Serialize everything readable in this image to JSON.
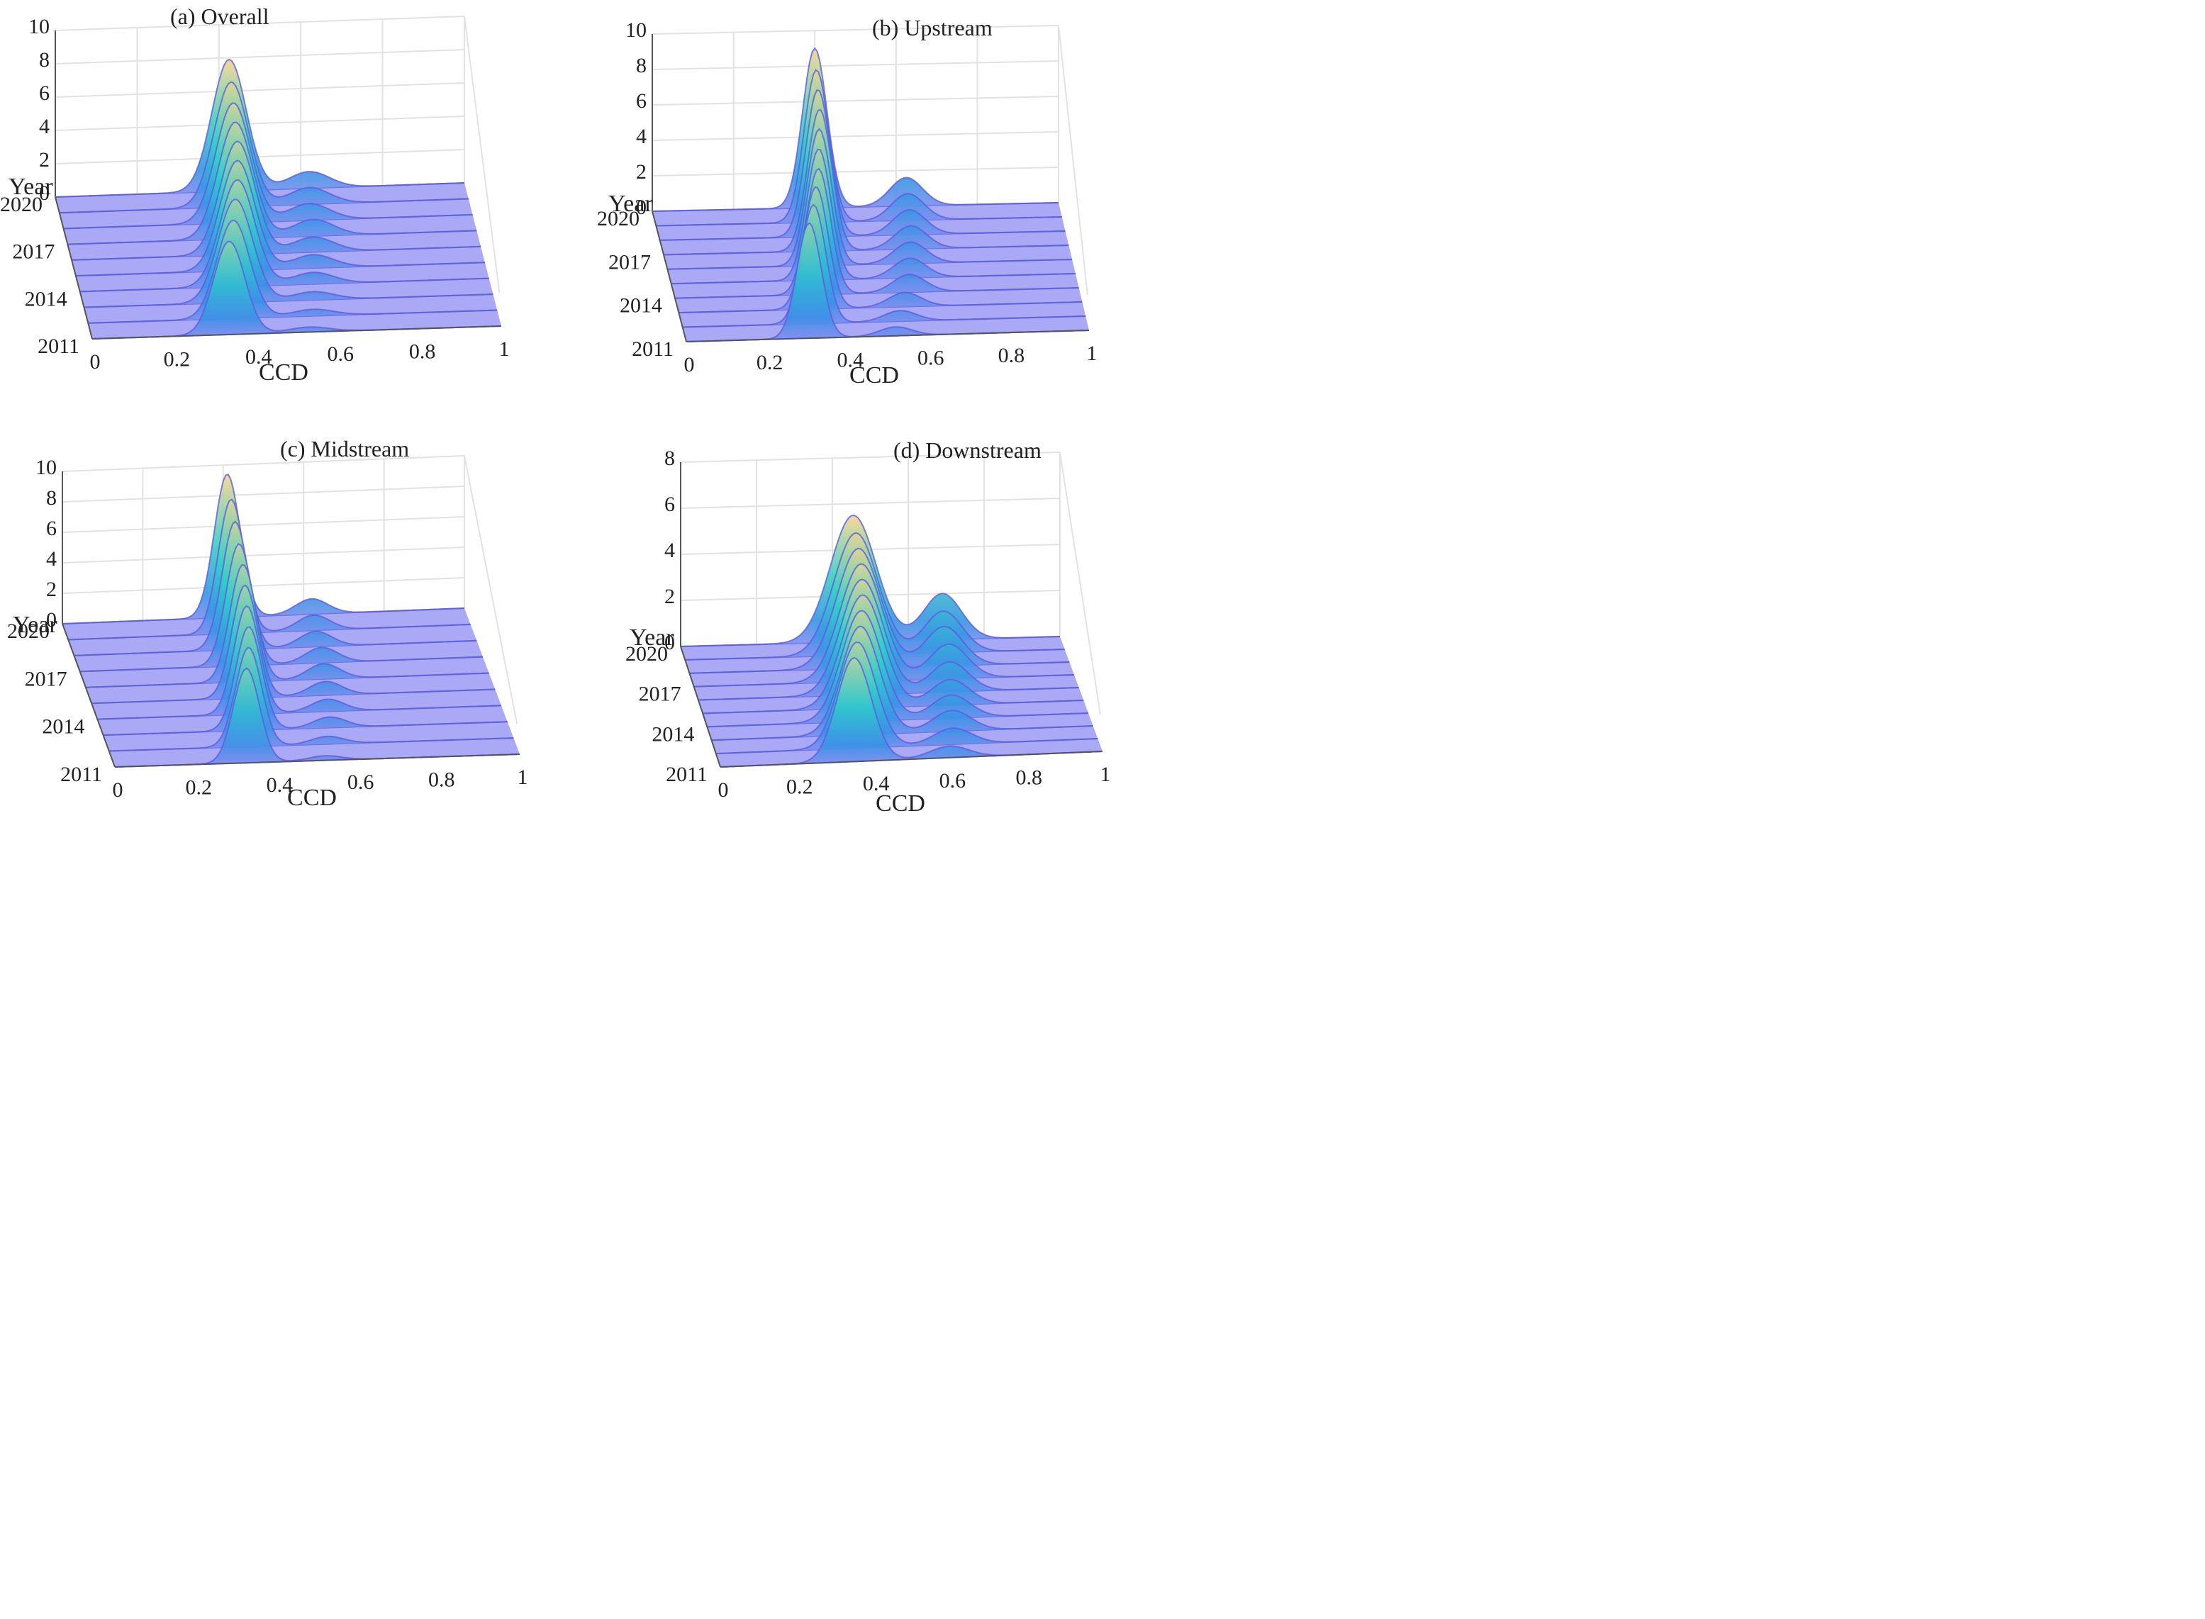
{
  "figure": {
    "chart_data": [
      {
        "type": "3d-density-ridge",
        "title": "(a) Overall",
        "xlabel": "CCD",
        "ylabel": "Year",
        "zlabel": "",
        "xlim": [
          0,
          1
        ],
        "zlim": [
          0,
          10
        ],
        "x_ticks": [
          "0",
          "0.2",
          "0.4",
          "0.6",
          "0.8",
          "1"
        ],
        "y_ticks": [
          "2011",
          "2014",
          "2017",
          "2020"
        ],
        "z_ticks": [
          "0",
          "2",
          "4",
          "6",
          "8",
          "10"
        ],
        "years": [
          2011,
          2012,
          2013,
          2014,
          2015,
          2016,
          2017,
          2018,
          2019,
          2020
        ],
        "series": [
          {
            "year": 2011,
            "peaks": [
              {
                "mu": 0.335,
                "sigma": 0.038,
                "height": 5.6
              },
              {
                "mu": 0.53,
                "sigma": 0.05,
                "height": 0.3
              }
            ]
          },
          {
            "year": 2012,
            "peaks": [
              {
                "mu": 0.355,
                "sigma": 0.04,
                "height": 5.9
              },
              {
                "mu": 0.55,
                "sigma": 0.05,
                "height": 0.4
              }
            ]
          },
          {
            "year": 2013,
            "peaks": [
              {
                "mu": 0.37,
                "sigma": 0.042,
                "height": 6.2
              },
              {
                "mu": 0.56,
                "sigma": 0.05,
                "height": 0.5
              }
            ]
          },
          {
            "year": 2014,
            "peaks": [
              {
                "mu": 0.385,
                "sigma": 0.042,
                "height": 6.4
              },
              {
                "mu": 0.57,
                "sigma": 0.05,
                "height": 0.7
              }
            ]
          },
          {
            "year": 2015,
            "peaks": [
              {
                "mu": 0.395,
                "sigma": 0.042,
                "height": 6.6
              },
              {
                "mu": 0.58,
                "sigma": 0.05,
                "height": 0.8
              }
            ]
          },
          {
            "year": 2016,
            "peaks": [
              {
                "mu": 0.405,
                "sigma": 0.042,
                "height": 6.8
              },
              {
                "mu": 0.59,
                "sigma": 0.05,
                "height": 0.9
              }
            ]
          },
          {
            "year": 2017,
            "peaks": [
              {
                "mu": 0.41,
                "sigma": 0.042,
                "height": 7.0
              },
              {
                "mu": 0.6,
                "sigma": 0.05,
                "height": 1.0
              }
            ]
          },
          {
            "year": 2018,
            "peaks": [
              {
                "mu": 0.415,
                "sigma": 0.042,
                "height": 7.2
              },
              {
                "mu": 0.6,
                "sigma": 0.05,
                "height": 1.0
              }
            ]
          },
          {
            "year": 2019,
            "peaks": [
              {
                "mu": 0.42,
                "sigma": 0.042,
                "height": 7.5
              },
              {
                "mu": 0.61,
                "sigma": 0.05,
                "height": 1.0
              }
            ]
          },
          {
            "year": 2020,
            "peaks": [
              {
                "mu": 0.425,
                "sigma": 0.042,
                "height": 7.9
              },
              {
                "mu": 0.62,
                "sigma": 0.05,
                "height": 1.0
              }
            ]
          }
        ]
      },
      {
        "type": "3d-density-ridge",
        "title": "(b) Upstream",
        "xlabel": "CCD",
        "ylabel": "Year",
        "zlabel": "",
        "xlim": [
          0,
          1
        ],
        "zlim": [
          0,
          10
        ],
        "x_ticks": [
          "0",
          "0.2",
          "0.4",
          "0.6",
          "0.8",
          "1"
        ],
        "y_ticks": [
          "2011",
          "2014",
          "2017",
          "2020"
        ],
        "z_ticks": [
          "0",
          "2",
          "4",
          "6",
          "8",
          "10"
        ],
        "years": [
          2011,
          2012,
          2013,
          2014,
          2015,
          2016,
          2017,
          2018,
          2019,
          2020
        ],
        "series": [
          {
            "year": 2011,
            "peaks": [
              {
                "mu": 0.305,
                "sigma": 0.03,
                "height": 6.5
              },
              {
                "mu": 0.52,
                "sigma": 0.04,
                "height": 0.5
              }
            ]
          },
          {
            "year": 2012,
            "peaks": [
              {
                "mu": 0.325,
                "sigma": 0.03,
                "height": 6.7
              },
              {
                "mu": 0.54,
                "sigma": 0.04,
                "height": 0.6
              }
            ]
          },
          {
            "year": 2013,
            "peaks": [
              {
                "mu": 0.34,
                "sigma": 0.03,
                "height": 6.9
              },
              {
                "mu": 0.56,
                "sigma": 0.04,
                "height": 0.8
              }
            ]
          },
          {
            "year": 2014,
            "peaks": [
              {
                "mu": 0.355,
                "sigma": 0.03,
                "height": 7.1
              },
              {
                "mu": 0.58,
                "sigma": 0.04,
                "height": 1.0
              }
            ]
          },
          {
            "year": 2015,
            "peaks": [
              {
                "mu": 0.365,
                "sigma": 0.03,
                "height": 7.4
              },
              {
                "mu": 0.59,
                "sigma": 0.04,
                "height": 1.1
              }
            ]
          },
          {
            "year": 2016,
            "peaks": [
              {
                "mu": 0.375,
                "sigma": 0.03,
                "height": 7.7
              },
              {
                "mu": 0.6,
                "sigma": 0.04,
                "height": 1.2
              }
            ]
          },
          {
            "year": 2017,
            "peaks": [
              {
                "mu": 0.385,
                "sigma": 0.03,
                "height": 8.0
              },
              {
                "mu": 0.61,
                "sigma": 0.04,
                "height": 1.3
              }
            ]
          },
          {
            "year": 2018,
            "peaks": [
              {
                "mu": 0.39,
                "sigma": 0.03,
                "height": 8.3
              },
              {
                "mu": 0.615,
                "sigma": 0.04,
                "height": 1.4
              }
            ]
          },
          {
            "year": 2019,
            "peaks": [
              {
                "mu": 0.395,
                "sigma": 0.03,
                "height": 8.6
              },
              {
                "mu": 0.62,
                "sigma": 0.04,
                "height": 1.5
              }
            ]
          },
          {
            "year": 2020,
            "peaks": [
              {
                "mu": 0.4,
                "sigma": 0.03,
                "height": 9.0
              },
              {
                "mu": 0.625,
                "sigma": 0.04,
                "height": 1.6
              }
            ]
          }
        ]
      },
      {
        "type": "3d-density-ridge",
        "title": "(c) Midstream",
        "xlabel": "CCD",
        "ylabel": "Year",
        "zlabel": "",
        "xlim": [
          0,
          1
        ],
        "zlim": [
          0,
          10
        ],
        "x_ticks": [
          "0",
          "0.2",
          "0.4",
          "0.6",
          "0.8",
          "1"
        ],
        "y_ticks": [
          "2011",
          "2014",
          "2017",
          "2020"
        ],
        "z_ticks": [
          "0",
          "2",
          "4",
          "6",
          "8",
          "10"
        ],
        "years": [
          2011,
          2012,
          2013,
          2014,
          2015,
          2016,
          2017,
          2018,
          2019,
          2020
        ],
        "series": [
          {
            "year": 2011,
            "peaks": [
              {
                "mu": 0.325,
                "sigma": 0.032,
                "height": 6.2
              },
              {
                "mu": 0.52,
                "sigma": 0.04,
                "height": 0.3
              }
            ]
          },
          {
            "year": 2012,
            "peaks": [
              {
                "mu": 0.345,
                "sigma": 0.032,
                "height": 6.5
              },
              {
                "mu": 0.54,
                "sigma": 0.04,
                "height": 0.5
              }
            ]
          },
          {
            "year": 2013,
            "peaks": [
              {
                "mu": 0.36,
                "sigma": 0.032,
                "height": 6.8
              },
              {
                "mu": 0.56,
                "sigma": 0.04,
                "height": 0.7
              }
            ]
          },
          {
            "year": 2014,
            "peaks": [
              {
                "mu": 0.37,
                "sigma": 0.032,
                "height": 7.1
              },
              {
                "mu": 0.57,
                "sigma": 0.04,
                "height": 0.8
              }
            ]
          },
          {
            "year": 2015,
            "peaks": [
              {
                "mu": 0.38,
                "sigma": 0.032,
                "height": 7.4
              },
              {
                "mu": 0.58,
                "sigma": 0.04,
                "height": 0.9
              }
            ]
          },
          {
            "year": 2016,
            "peaks": [
              {
                "mu": 0.39,
                "sigma": 0.032,
                "height": 7.7
              },
              {
                "mu": 0.59,
                "sigma": 0.04,
                "height": 1.0
              }
            ]
          },
          {
            "year": 2017,
            "peaks": [
              {
                "mu": 0.395,
                "sigma": 0.032,
                "height": 8.0
              },
              {
                "mu": 0.6,
                "sigma": 0.04,
                "height": 1.0
              }
            ]
          },
          {
            "year": 2018,
            "peaks": [
              {
                "mu": 0.4,
                "sigma": 0.032,
                "height": 8.4
              },
              {
                "mu": 0.6,
                "sigma": 0.04,
                "height": 1.0
              }
            ]
          },
          {
            "year": 2019,
            "peaks": [
              {
                "mu": 0.405,
                "sigma": 0.032,
                "height": 8.8
              },
              {
                "mu": 0.61,
                "sigma": 0.04,
                "height": 1.0
              }
            ]
          },
          {
            "year": 2020,
            "peaks": [
              {
                "mu": 0.41,
                "sigma": 0.032,
                "height": 9.4
              },
              {
                "mu": 0.62,
                "sigma": 0.04,
                "height": 1.0
              }
            ]
          }
        ]
      },
      {
        "type": "3d-density-ridge",
        "title": "(d) Downstream",
        "xlabel": "CCD",
        "ylabel": "Year",
        "zlabel": "",
        "xlim": [
          0,
          1
        ],
        "zlim": [
          0,
          8
        ],
        "x_ticks": [
          "0",
          "0.2",
          "0.4",
          "0.6",
          "0.8",
          "1"
        ],
        "y_ticks": [
          "2011",
          "2014",
          "2017",
          "2020"
        ],
        "z_ticks": [
          "0",
          "2",
          "4",
          "6",
          "8"
        ],
        "years": [
          2011,
          2012,
          2013,
          2014,
          2015,
          2016,
          2017,
          2018,
          2019,
          2020
        ],
        "series": [
          {
            "year": 2011,
            "peaks": [
              {
                "mu": 0.35,
                "sigma": 0.045,
                "height": 4.5
              },
              {
                "mu": 0.6,
                "sigma": 0.05,
                "height": 0.5
              }
            ]
          },
          {
            "year": 2012,
            "peaks": [
              {
                "mu": 0.37,
                "sigma": 0.048,
                "height": 4.6
              },
              {
                "mu": 0.62,
                "sigma": 0.05,
                "height": 0.7
              }
            ]
          },
          {
            "year": 2013,
            "peaks": [
              {
                "mu": 0.39,
                "sigma": 0.05,
                "height": 4.7
              },
              {
                "mu": 0.63,
                "sigma": 0.05,
                "height": 0.9
              }
            ]
          },
          {
            "year": 2014,
            "peaks": [
              {
                "mu": 0.405,
                "sigma": 0.052,
                "height": 4.8
              },
              {
                "mu": 0.64,
                "sigma": 0.05,
                "height": 1.0
              }
            ]
          },
          {
            "year": 2015,
            "peaks": [
              {
                "mu": 0.42,
                "sigma": 0.054,
                "height": 4.9
              },
              {
                "mu": 0.65,
                "sigma": 0.05,
                "height": 1.1
              }
            ]
          },
          {
            "year": 2016,
            "peaks": [
              {
                "mu": 0.43,
                "sigma": 0.055,
                "height": 5.0
              },
              {
                "mu": 0.66,
                "sigma": 0.05,
                "height": 1.3
              }
            ]
          },
          {
            "year": 2017,
            "peaks": [
              {
                "mu": 0.44,
                "sigma": 0.056,
                "height": 5.1
              },
              {
                "mu": 0.67,
                "sigma": 0.05,
                "height": 1.5
              }
            ]
          },
          {
            "year": 2018,
            "peaks": [
              {
                "mu": 0.445,
                "sigma": 0.057,
                "height": 5.2
              },
              {
                "mu": 0.67,
                "sigma": 0.05,
                "height": 1.7
              }
            ]
          },
          {
            "year": 2019,
            "peaks": [
              {
                "mu": 0.45,
                "sigma": 0.058,
                "height": 5.3
              },
              {
                "mu": 0.68,
                "sigma": 0.05,
                "height": 1.8
              }
            ]
          },
          {
            "year": 2020,
            "peaks": [
              {
                "mu": 0.455,
                "sigma": 0.06,
                "height": 5.5
              },
              {
                "mu": 0.69,
                "sigma": 0.05,
                "height": 2.0
              }
            ]
          }
        ]
      }
    ],
    "colors": {
      "floor": "#a9a9f5",
      "floor_line": "#7070dd",
      "ridge_low": "#8a8ef0",
      "ridge_mid_blue": "#3a8fe8",
      "ridge_cyan": "#2fd0c8",
      "ridge_yellow": "#f7d58e",
      "grid": "#e2e2e2",
      "axis": "#555555"
    }
  }
}
